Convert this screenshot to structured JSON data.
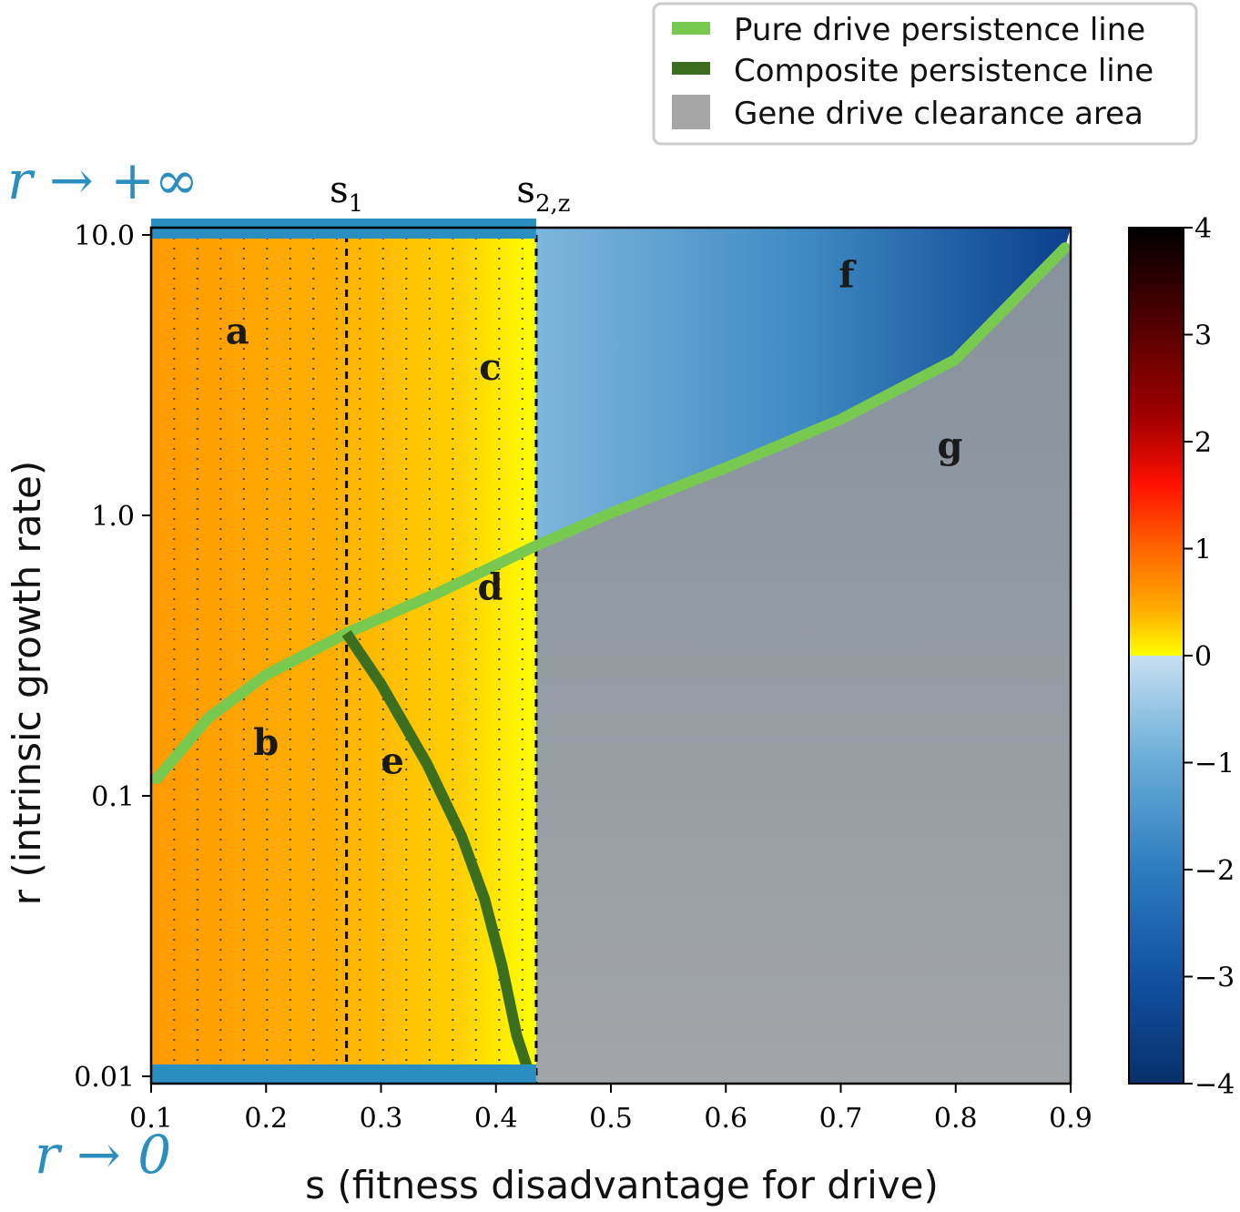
{
  "chart_data": {
    "type": "heatmap",
    "xlabel": "s (fitness disadvantage for drive)",
    "ylabel": "r (intrinsic growth rate)",
    "x_scale": "linear",
    "y_scale": "log",
    "xlim": [
      0.1,
      0.9
    ],
    "ylim": [
      0.01,
      10.0
    ],
    "x_ticks": [
      "0.1",
      "0.2",
      "0.3",
      "0.4",
      "0.5",
      "0.6",
      "0.7",
      "0.8",
      "0.9"
    ],
    "y_ticks": [
      "0.01",
      "0.1",
      "1.0",
      "10.0"
    ],
    "colorbar": {
      "range": [
        -4,
        4
      ],
      "ticks": [
        "4",
        "3",
        "2",
        "1",
        "0",
        "−1",
        "−2",
        "−3",
        "−4"
      ]
    },
    "limit_labels": {
      "top": "r → +∞",
      "bottom": "r → 0"
    },
    "thresholds": [
      {
        "name": "s1",
        "label_main": "s",
        "label_sub": "1",
        "x": 0.27
      },
      {
        "name": "s2z",
        "label_main": "s",
        "label_sub": "2,z",
        "x": 0.435
      }
    ],
    "series": [
      {
        "name": "Pure drive persistence line",
        "color": "#77c94f",
        "points": [
          [
            0.105,
            0.115
          ],
          [
            0.15,
            0.19
          ],
          [
            0.2,
            0.27
          ],
          [
            0.27,
            0.38
          ],
          [
            0.35,
            0.53
          ],
          [
            0.435,
            0.78
          ],
          [
            0.5,
            1.02
          ],
          [
            0.6,
            1.48
          ],
          [
            0.7,
            2.2
          ],
          [
            0.8,
            3.6
          ],
          [
            0.895,
            9.0
          ]
        ]
      },
      {
        "name": "Composite persistence line",
        "color": "#3b6e1f",
        "points": [
          [
            0.27,
            0.38
          ],
          [
            0.3,
            0.25
          ],
          [
            0.34,
            0.13
          ],
          [
            0.37,
            0.072
          ],
          [
            0.39,
            0.043
          ],
          [
            0.405,
            0.025
          ],
          [
            0.418,
            0.014
          ],
          [
            0.428,
            0.0105
          ]
        ]
      }
    ],
    "clearance_area": {
      "name": "Gene drive clearance area",
      "color": "#a5a5a5"
    },
    "legend": {
      "position": "top-right",
      "entries": [
        {
          "label": "Pure drive persistence line",
          "color": "#77c94f"
        },
        {
          "label": "Composite persistence line",
          "color": "#3b6e1f"
        },
        {
          "label": "Gene drive clearance area",
          "color": "#a5a5a5"
        }
      ]
    },
    "region_labels": [
      {
        "text": "a",
        "x": 0.175,
        "y": 4.1
      },
      {
        "text": "b",
        "x": 0.2,
        "y": 0.14
      },
      {
        "text": "c",
        "x": 0.395,
        "y": 3.05
      },
      {
        "text": "d",
        "x": 0.395,
        "y": 0.5
      },
      {
        "text": "e",
        "x": 0.31,
        "y": 0.12
      },
      {
        "text": "f",
        "x": 0.705,
        "y": 6.5
      },
      {
        "text": "g",
        "x": 0.795,
        "y": 1.6
      }
    ]
  }
}
